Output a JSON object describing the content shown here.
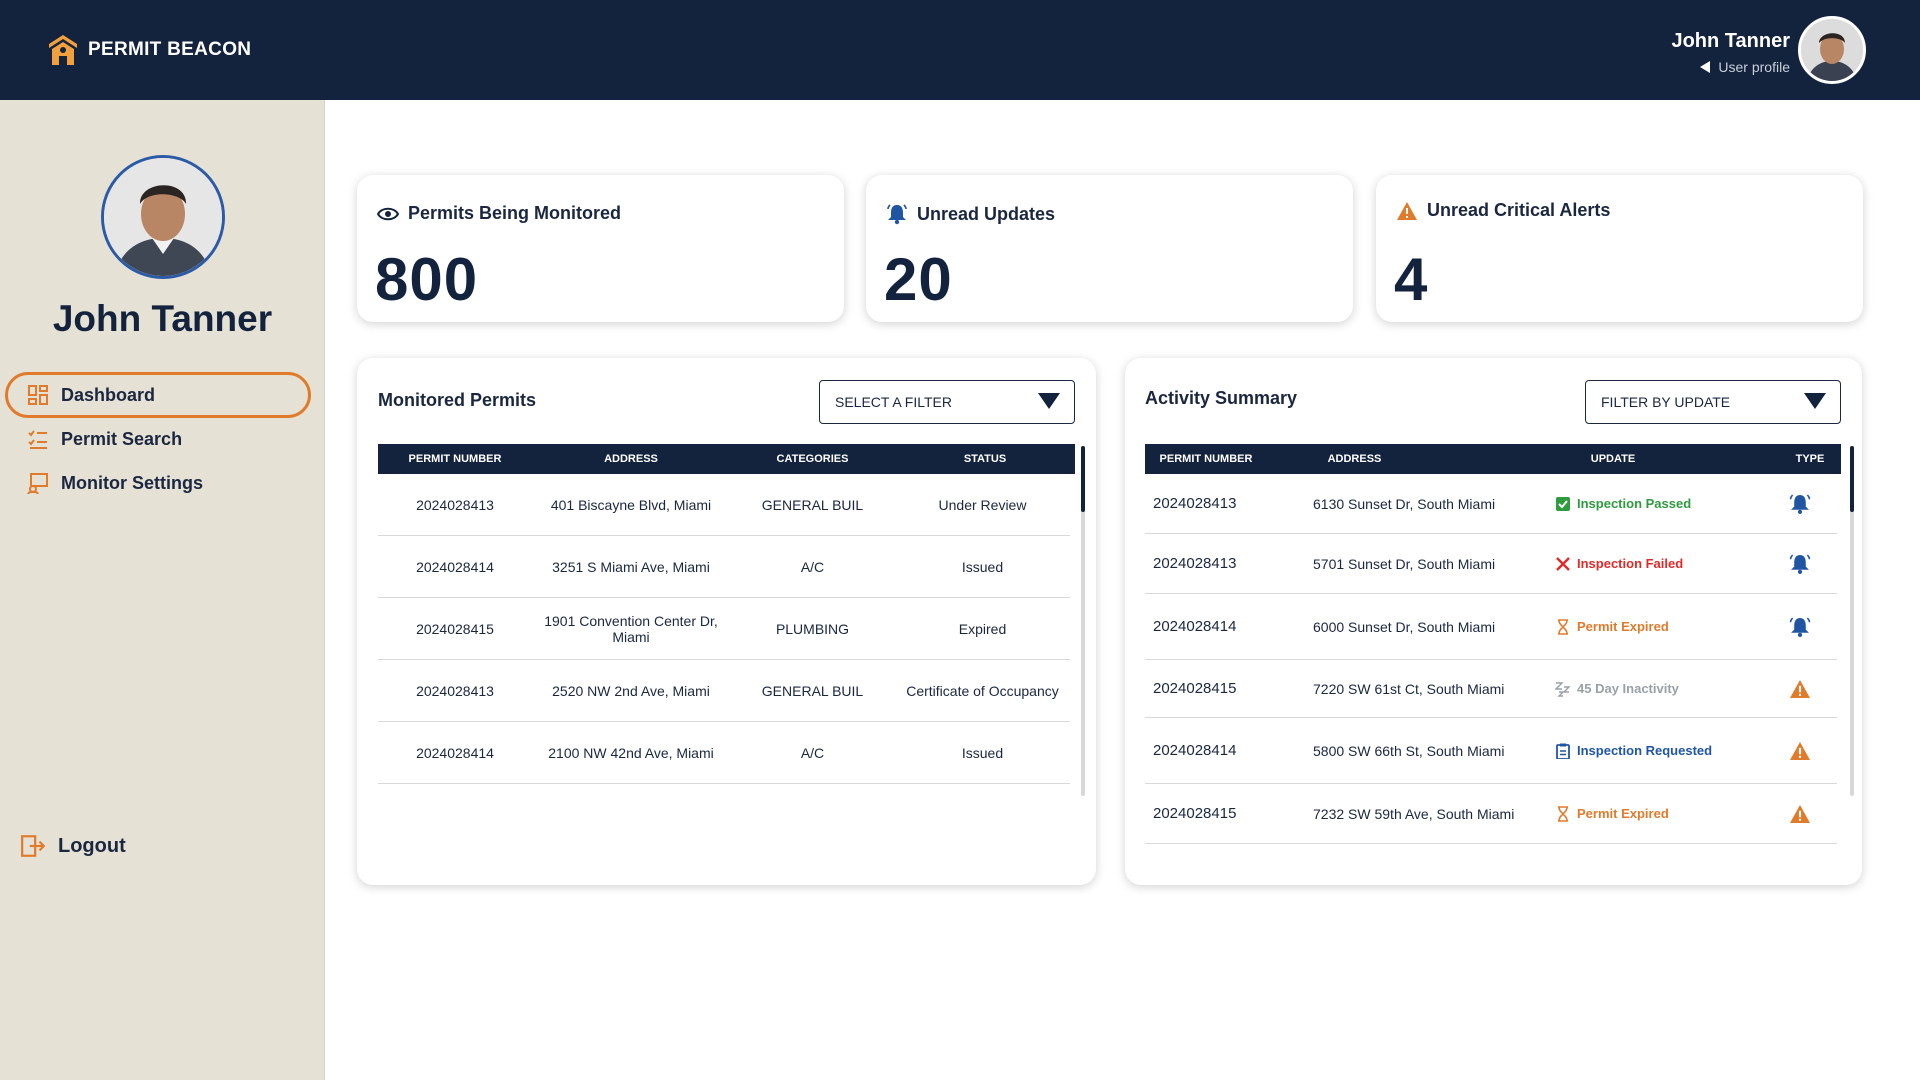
{
  "app": {
    "brand": "PERMIT BEACON",
    "user_name": "John Tanner",
    "user_profile_label": "User profile"
  },
  "sidebar": {
    "name": "John Tanner",
    "items": [
      {
        "label": "Dashboard",
        "icon": "dashboard-icon",
        "active": true
      },
      {
        "label": "Permit Search",
        "icon": "checklist-icon",
        "active": false
      },
      {
        "label": "Monitor Settings",
        "icon": "monitor-icon",
        "active": false
      }
    ],
    "logout_label": "Logout"
  },
  "stats": [
    {
      "label": "Permits Being Monitored",
      "value": "800",
      "icon": "eye-icon"
    },
    {
      "label": "Unread Updates",
      "value": "20",
      "icon": "bell-icon"
    },
    {
      "label": "Unread Critical Alerts",
      "value": "4",
      "icon": "warning-icon"
    }
  ],
  "monitored": {
    "title": "Monitored Permits",
    "filter": "SELECT A FILTER",
    "columns": [
      "PERMIT NUMBER",
      "ADDRESS",
      "CATEGORIES",
      "STATUS"
    ],
    "rows": [
      [
        "2024028413",
        "401 Biscayne Blvd, Miami",
        "GENERAL BUIL",
        "Under Review"
      ],
      [
        "2024028414",
        "3251 S Miami Ave, Miami",
        "A/C",
        "Issued"
      ],
      [
        "2024028415",
        "1901 Convention Center Dr, Miami",
        "PLUMBING",
        "Expired"
      ],
      [
        "2024028413",
        "2520 NW 2nd Ave, Miami",
        "GENERAL BUIL",
        "Certificate of Occupancy"
      ],
      [
        "2024028414",
        "2100 NW 42nd Ave, Miami",
        "A/C",
        "Issued"
      ]
    ]
  },
  "activity": {
    "title": "Activity Summary",
    "filter": "FILTER BY UPDATE",
    "columns": [
      "PERMIT NUMBER",
      "ADDRESS",
      "UPDATE",
      "TYPE"
    ],
    "rows": [
      {
        "permit": "2024028413",
        "address": "6130 Sunset Dr, South Miami",
        "update": "Inspection Passed",
        "update_icon": "check-icon",
        "color": "#2e9b3f",
        "type_icon": "bell-icon"
      },
      {
        "permit": "2024028413",
        "address": "5701 Sunset Dr, South Miami",
        "update": "Inspection Failed",
        "update_icon": "x-icon",
        "color": "#e02a2a",
        "type_icon": "bell-icon"
      },
      {
        "permit": "2024028414",
        "address": "6000 Sunset Dr, South Miami",
        "update": "Permit Expired",
        "update_icon": "hourglass-icon",
        "color": "#e07b2c",
        "type_icon": "bell-icon"
      },
      {
        "permit": "2024028415",
        "address": "7220 SW 61st Ct, South Miami",
        "update": "45 Day Inactivity",
        "update_icon": "sleep-icon",
        "color": "#9aa0a6",
        "type_icon": "warning-icon"
      },
      {
        "permit": "2024028414",
        "address": "5800 SW 66th St, South Miami",
        "update": "Inspection Requested",
        "update_icon": "clipboard-icon",
        "color": "#2055a4",
        "type_icon": "warning-icon"
      },
      {
        "permit": "2024028415",
        "address": "7232 SW 59th Ave, South Miami",
        "update": "Permit Expired",
        "update_icon": "hourglass-icon",
        "color": "#e07b2c",
        "type_icon": "warning-icon"
      }
    ]
  }
}
